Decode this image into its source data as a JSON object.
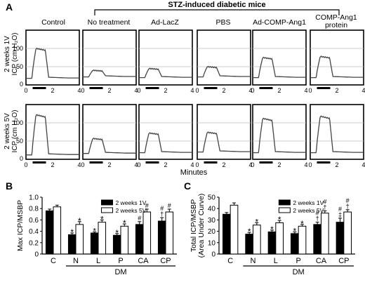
{
  "panel_labels": {
    "a": "A",
    "b": "B",
    "c": "C"
  },
  "bracket_title": "STZ-induced diabetic mice",
  "column_titles": [
    "Control",
    "No treatment",
    "Ad-LacZ",
    "PBS",
    "Ad-COMP-Ang1",
    "COMP-Ang1"
  ],
  "column_title_extra": "protein",
  "row_labels": [
    {
      "line1": "2 weeks 1V",
      "line2": "ICP (cm H₂O)"
    },
    {
      "line1": "2 weeks 5V",
      "line2": "ICP (cm H₂O)"
    }
  ],
  "trace_axis": {
    "y_ticks": [
      "0",
      "50",
      "100"
    ],
    "x_ticks": [
      "0",
      "2",
      "4"
    ],
    "x_title": "Minutes"
  },
  "chart_data": [
    {
      "type": "line",
      "title": "",
      "description_rows": [
        "2 weeks 1V",
        "2 weeks 5V"
      ],
      "xlabel": "Minutes",
      "ylabel": "ICP (cm H₂O)",
      "xlim": [
        0,
        4
      ],
      "ylim": [
        0,
        150
      ],
      "grid": "horizontal lines at 50 and 100",
      "stimulation_bar_minutes": [
        0.5,
        1.5
      ],
      "columns": [
        "Control",
        "No treatment",
        "Ad-LacZ",
        "PBS",
        "Ad-COMP-Ang1",
        "COMP-Ang1 protein"
      ],
      "peak_icp_1V": [
        100,
        40,
        45,
        50,
        75,
        78
      ],
      "peak_icp_5V": [
        122,
        57,
        72,
        74,
        112,
        118
      ],
      "baseline_icp_1V": [
        18,
        22,
        20,
        22,
        20,
        20
      ],
      "baseline_icp_5V": [
        12,
        16,
        18,
        20,
        18,
        18
      ]
    },
    {
      "type": "bar",
      "panel": "B",
      "ylabel": "Max ICP/MSBP",
      "ylim": [
        0,
        1.0
      ],
      "y_ticks": [
        "0",
        "0.2",
        "0.4",
        "0.6",
        "0.8",
        "1.0"
      ],
      "categories": [
        "C",
        "N",
        "L",
        "P",
        "CA",
        "CP"
      ],
      "group_label": "DM",
      "legend": "top-right",
      "series": [
        {
          "name": "2 weeks 1V",
          "values": [
            0.76,
            0.34,
            0.37,
            0.33,
            0.52,
            0.58
          ],
          "errors": [
            0.03,
            0.03,
            0.02,
            0.03,
            0.05,
            0.06
          ]
        },
        {
          "name": "2 weeks 5V",
          "values": [
            0.83,
            0.52,
            0.56,
            0.49,
            0.74,
            0.74
          ],
          "errors": [
            0.03,
            0.05,
            0.04,
            0.04,
            0.05,
            0.05
          ]
        }
      ],
      "annotations": {
        "1V": [
          [],
          [
            "*"
          ],
          [
            "*"
          ],
          [
            "*"
          ],
          [
            "#"
          ],
          [
            "#",
            "†"
          ]
        ],
        "5V": [
          [],
          [
            "*"
          ],
          [
            "*"
          ],
          [
            "*"
          ],
          [
            "#"
          ],
          [
            "#"
          ]
        ]
      }
    },
    {
      "type": "bar",
      "panel": "C",
      "ylabel": "Total ICP/MSBP",
      "ylabel2": "(Area Under Curve)",
      "ylim": [
        0,
        50
      ],
      "y_ticks": [
        "0",
        "10",
        "20",
        "30",
        "40",
        "50"
      ],
      "categories": [
        "C",
        "N",
        "L",
        "P",
        "CA",
        "CP"
      ],
      "group_label": "DM",
      "legend": "top-right",
      "series": [
        {
          "name": "2 weeks 1V",
          "values": [
            35,
            17.5,
            19.5,
            18,
            26,
            28
          ],
          "errors": [
            1.5,
            1.5,
            1.5,
            1.5,
            2,
            3.5
          ]
        },
        {
          "name": "2 weeks 5V",
          "values": [
            43,
            25.5,
            27.5,
            24.5,
            36,
            37
          ],
          "errors": [
            2,
            2,
            2,
            1.5,
            2,
            2
          ]
        }
      ],
      "annotations": {
        "1V": [
          [],
          [
            "*"
          ],
          [
            "*"
          ],
          [
            "*"
          ],
          [
            "#",
            "†"
          ],
          [
            "#",
            "‡"
          ]
        ],
        "5V": [
          [],
          [
            "*"
          ],
          [
            "*"
          ],
          [
            "*"
          ],
          [
            "#",
            "†"
          ],
          [
            "#",
            "†"
          ]
        ]
      }
    }
  ]
}
